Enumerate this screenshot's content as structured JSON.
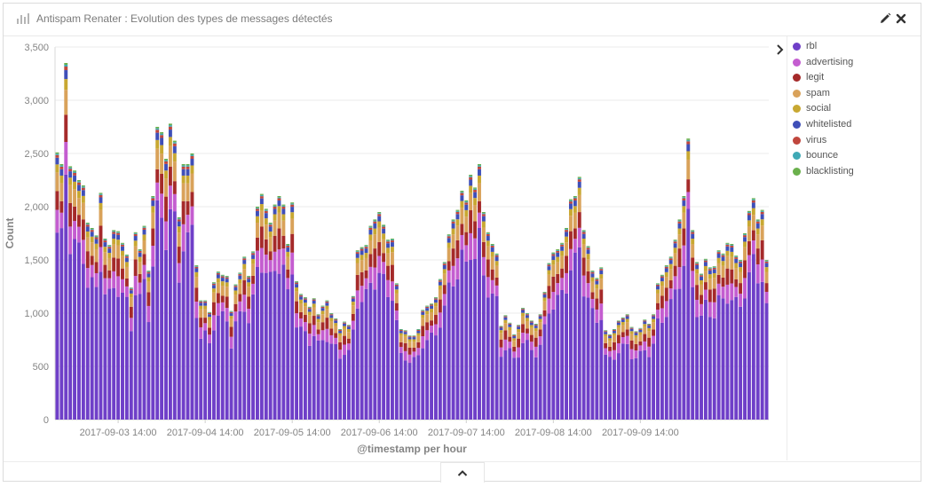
{
  "panel": {
    "title": "Antispam Renater : Evolution des types de messages détectés",
    "title_icon": "bar-chart-icon",
    "edit_icon": "pencil-icon",
    "close_icon": "close-icon",
    "legend_toggle_icon": "chevron-right-icon",
    "collapse_icon": "chevron-up-icon"
  },
  "chart_data": {
    "type": "bar",
    "stacked": true,
    "title": "",
    "xlabel": "@timestamp per hour",
    "ylabel": "Count",
    "ylim": [
      0,
      3500
    ],
    "yticks": [
      0,
      500,
      1000,
      1500,
      2000,
      2500,
      3000,
      3500
    ],
    "ytick_labels": [
      "0",
      "500",
      "1,000",
      "1,500",
      "2,000",
      "2,500",
      "3,000",
      "3,500"
    ],
    "xtick_labels": [
      "2017-09-03 14:00",
      "2017-09-04 14:00",
      "2017-09-05 14:00",
      "2017-09-06 14:00",
      "2017-09-07 14:00",
      "2017-09-08 14:00",
      "2017-09-09 14:00"
    ],
    "xtick_bar_index": [
      14,
      34,
      54,
      74,
      94,
      114,
      134
    ],
    "grid": true,
    "legend_position": "right",
    "series": [
      {
        "name": "rbl",
        "color": "#6f3fc8"
      },
      {
        "name": "advertising",
        "color": "#c45dd0"
      },
      {
        "name": "legit",
        "color": "#a52a2a"
      },
      {
        "name": "spam",
        "color": "#d9a25a"
      },
      {
        "name": "social",
        "color": "#c8a832"
      },
      {
        "name": "whitelisted",
        "color": "#3f4fb8"
      },
      {
        "name": "virus",
        "color": "#c0463d"
      },
      {
        "name": "bounce",
        "color": "#3fa9b5"
      },
      {
        "name": "blacklisting",
        "color": "#6ab04c"
      }
    ],
    "totals": [
      2510,
      2400,
      3350,
      2380,
      2340,
      2250,
      2200,
      1850,
      1800,
      1730,
      2130,
      1700,
      1640,
      1780,
      1770,
      1660,
      1550,
      1240,
      1760,
      1600,
      1820,
      1400,
      2100,
      2750,
      2700,
      2450,
      2780,
      2620,
      1900,
      2400,
      2400,
      2500,
      1450,
      1120,
      1120,
      1010,
      1290,
      1390,
      1360,
      1350,
      1020,
      1270,
      1380,
      1530,
      1350,
      1580,
      2000,
      2120,
      1980,
      1850,
      2020,
      2100,
      2020,
      1650,
      2040,
      1300,
      1180,
      1150,
      1060,
      1140,
      990,
      1070,
      1120,
      1000,
      950,
      850,
      920,
      890,
      1160,
      1590,
      1620,
      1640,
      1820,
      1880,
      1950,
      1830,
      1690,
      1700,
      1280,
      850,
      840,
      790,
      790,
      850,
      1030,
      1070,
      1090,
      1150,
      1320,
      1480,
      1740,
      1880,
      1970,
      2150,
      2060,
      2300,
      2180,
      2400,
      1950,
      1760,
      1650,
      1560,
      880,
      980,
      910,
      800,
      890,
      1050,
      1000,
      930,
      900,
      990,
      1200,
      1470,
      1570,
      1600,
      1660,
      1800,
      2070,
      2100,
      2280,
      1780,
      1630,
      1400,
      1330,
      1430,
      840,
      800,
      850,
      930,
      960,
      990,
      870,
      830,
      860,
      940,
      900,
      990,
      1280,
      1360,
      1450,
      1530,
      1690,
      1880,
      2100,
      2640,
      1780,
      1480,
      1370,
      1510,
      1430,
      1440,
      1590,
      1560,
      1660,
      1650,
      1540,
      1500,
      1750,
      1960,
      2080,
      1880,
      1970,
      1500
    ]
  }
}
